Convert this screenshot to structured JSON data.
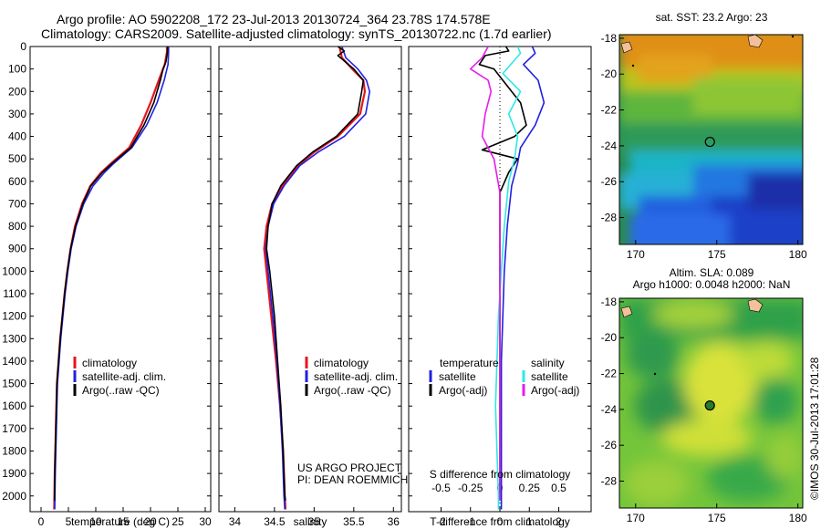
{
  "header": {
    "line1": "Argo profile: AO 5902208_172 23-Jul-2013 20130724_364 23.78S 174.578E",
    "line2": "Climatology: CARS2009. Satellite-adjusted climatology: synTS_20130722.nc (1.7d earlier)"
  },
  "colors": {
    "climatology": "#e8141c",
    "satellite": "#1f22e0",
    "argo": "#000000",
    "sat_salinity": "#2de8e8",
    "argo_salinity_adj": "#e81ce8"
  },
  "chart_data": [
    {
      "type": "line",
      "id": "temperature",
      "xlabel": "temperature (deg C)",
      "xticks": [
        0,
        5,
        10,
        15,
        20,
        25,
        30
      ],
      "xlim": [
        -2,
        31
      ],
      "ylim": [
        0,
        2070
      ],
      "yticks": [
        0,
        100,
        200,
        300,
        400,
        500,
        600,
        700,
        800,
        900,
        1000,
        1100,
        1200,
        1300,
        1400,
        1500,
        1600,
        1700,
        1800,
        1900,
        2000
      ],
      "legend": [
        "climatology",
        "satellite-adj. clim.",
        "Argo(..raw -QC)"
      ],
      "series": [
        {
          "name": "climatology",
          "color": "#e8141c",
          "points": [
            [
              23.0,
              0
            ],
            [
              23.0,
              25
            ],
            [
              22.6,
              80
            ],
            [
              21.5,
              150
            ],
            [
              20.0,
              250
            ],
            [
              18.3,
              350
            ],
            [
              16.1,
              450
            ],
            [
              12.8,
              520
            ],
            [
              11.0,
              560
            ],
            [
              9.0,
              620
            ],
            [
              7.5,
              700
            ],
            [
              6.2,
              800
            ],
            [
              5.4,
              900
            ],
            [
              4.8,
              1000
            ],
            [
              4.3,
              1100
            ],
            [
              3.9,
              1200
            ],
            [
              3.5,
              1300
            ],
            [
              3.2,
              1400
            ],
            [
              2.9,
              1500
            ],
            [
              2.7,
              1700
            ],
            [
              2.5,
              1900
            ],
            [
              2.4,
              2060
            ]
          ]
        },
        {
          "name": "satellite-adj. clim.",
          "color": "#1f22e0",
          "points": [
            [
              23.3,
              0
            ],
            [
              23.3,
              25
            ],
            [
              23.2,
              80
            ],
            [
              22.5,
              150
            ],
            [
              21.2,
              250
            ],
            [
              19.3,
              350
            ],
            [
              16.6,
              450
            ],
            [
              13.3,
              520
            ],
            [
              11.6,
              560
            ],
            [
              9.5,
              620
            ],
            [
              7.8,
              700
            ],
            [
              6.4,
              800
            ],
            [
              5.5,
              900
            ],
            [
              4.9,
              1000
            ],
            [
              4.4,
              1100
            ],
            [
              4.0,
              1200
            ],
            [
              3.6,
              1300
            ],
            [
              3.3,
              1400
            ],
            [
              3.0,
              1500
            ],
            [
              2.8,
              1700
            ],
            [
              2.6,
              1900
            ],
            [
              2.5,
              2060
            ]
          ]
        },
        {
          "name": "Argo(..raw -QC)",
          "color": "#000000",
          "points": [
            [
              23.1,
              0
            ],
            [
              23.1,
              20
            ],
            [
              23.0,
              40
            ],
            [
              22.8,
              70
            ],
            [
              22.3,
              100
            ],
            [
              21.8,
              150
            ],
            [
              20.6,
              250
            ],
            [
              18.8,
              350
            ],
            [
              16.4,
              450
            ],
            [
              13.0,
              520
            ],
            [
              11.2,
              560
            ],
            [
              9.1,
              620
            ],
            [
              7.6,
              700
            ],
            [
              6.3,
              800
            ],
            [
              5.4,
              900
            ],
            [
              4.8,
              1000
            ],
            [
              4.3,
              1100
            ],
            [
              3.9,
              1200
            ],
            [
              3.5,
              1300
            ],
            [
              3.2,
              1400
            ],
            [
              2.9,
              1500
            ],
            [
              2.7,
              1700
            ],
            [
              2.5,
              1900
            ],
            [
              2.45,
              2020
            ]
          ]
        }
      ]
    },
    {
      "type": "line",
      "id": "salinity",
      "xlabel": "salinity",
      "xticks": [
        34,
        34.5,
        35,
        35.5,
        36
      ],
      "xlim": [
        33.8,
        36.1
      ],
      "ylim": [
        0,
        2070
      ],
      "legend": [
        "climatology",
        "satellite-adj. clim.",
        "Argo(..raw -QC)"
      ],
      "annotation": [
        "US ARGO PROJECT",
        "PI: DEAN ROEMMICH"
      ],
      "series": [
        {
          "name": "climatology",
          "color": "#e8141c",
          "points": [
            [
              35.32,
              0
            ],
            [
              35.35,
              50
            ],
            [
              35.48,
              100
            ],
            [
              35.62,
              150
            ],
            [
              35.64,
              200
            ],
            [
              35.58,
              300
            ],
            [
              35.3,
              400
            ],
            [
              35.0,
              470
            ],
            [
              34.8,
              530
            ],
            [
              34.6,
              620
            ],
            [
              34.47,
              700
            ],
            [
              34.4,
              800
            ],
            [
              34.37,
              900
            ],
            [
              34.4,
              1000
            ],
            [
              34.46,
              1200
            ],
            [
              34.52,
              1400
            ],
            [
              34.57,
              1600
            ],
            [
              34.61,
              1800
            ],
            [
              34.63,
              2000
            ],
            [
              34.64,
              2060
            ]
          ]
        },
        {
          "name": "satellite-adj. clim.",
          "color": "#1f22e0",
          "points": [
            [
              35.35,
              0
            ],
            [
              35.4,
              50
            ],
            [
              35.55,
              100
            ],
            [
              35.66,
              150
            ],
            [
              35.7,
              200
            ],
            [
              35.65,
              300
            ],
            [
              35.38,
              400
            ],
            [
              35.05,
              470
            ],
            [
              34.82,
              530
            ],
            [
              34.62,
              620
            ],
            [
              34.49,
              700
            ],
            [
              34.42,
              800
            ],
            [
              34.39,
              900
            ],
            [
              34.42,
              1000
            ],
            [
              34.48,
              1200
            ],
            [
              34.53,
              1400
            ],
            [
              34.57,
              1600
            ],
            [
              34.6,
              1800
            ],
            [
              34.62,
              2000
            ],
            [
              34.63,
              2060
            ]
          ]
        },
        {
          "name": "Argo(..raw -QC)",
          "color": "#000000",
          "points": [
            [
              35.3,
              0
            ],
            [
              35.38,
              20
            ],
            [
              35.3,
              40
            ],
            [
              35.4,
              70
            ],
            [
              35.5,
              100
            ],
            [
              35.62,
              150
            ],
            [
              35.6,
              200
            ],
            [
              35.55,
              300
            ],
            [
              35.28,
              400
            ],
            [
              34.98,
              470
            ],
            [
              34.78,
              530
            ],
            [
              34.58,
              620
            ],
            [
              34.47,
              700
            ],
            [
              34.42,
              800
            ],
            [
              34.4,
              900
            ],
            [
              34.44,
              1000
            ],
            [
              34.5,
              1200
            ],
            [
              34.54,
              1400
            ],
            [
              34.58,
              1600
            ],
            [
              34.61,
              1800
            ],
            [
              34.63,
              2000
            ],
            [
              34.64,
              2020
            ]
          ]
        }
      ]
    },
    {
      "type": "line",
      "id": "difference",
      "xlabel": "T difference from climatology",
      "xlabel_top": "S difference from climatology",
      "xticks": [
        -2,
        -1,
        0,
        1,
        2
      ],
      "xticks_s": [
        -0.5,
        -0.25,
        0,
        0.25,
        0.5
      ],
      "xlim": [
        -3.1,
        3.1
      ],
      "ylim": [
        0,
        2070
      ],
      "legend_title_t": "temperature",
      "legend_title_s": "salinity",
      "legend": [
        "satellite",
        "Argo(-adj)",
        "satellite",
        "Argo(-adj)"
      ],
      "series": [
        {
          "name": "T satellite",
          "color": "#1f22e0",
          "points": [
            [
              1.1,
              0
            ],
            [
              1.2,
              30
            ],
            [
              0.8,
              80
            ],
            [
              1.3,
              150
            ],
            [
              1.5,
              250
            ],
            [
              1.2,
              350
            ],
            [
              0.7,
              450
            ],
            [
              0.6,
              520
            ],
            [
              0.4,
              620
            ],
            [
              0.25,
              800
            ],
            [
              0.15,
              1000
            ],
            [
              0.1,
              1200
            ],
            [
              0.05,
              1400
            ],
            [
              0.05,
              1600
            ],
            [
              0.05,
              1800
            ],
            [
              0.05,
              2000
            ],
            [
              0.05,
              2060
            ]
          ]
        },
        {
          "name": "T Argo(-adj)",
          "color": "#000000",
          "points": [
            [
              0.2,
              0
            ],
            [
              0.3,
              20
            ],
            [
              -0.5,
              40
            ],
            [
              -0.7,
              80
            ],
            [
              -0.2,
              100
            ],
            [
              0.1,
              150
            ],
            [
              0.7,
              250
            ],
            [
              0.9,
              350
            ],
            [
              0.5,
              400
            ],
            [
              -0.6,
              460
            ],
            [
              0.6,
              500
            ],
            [
              0.3,
              560
            ],
            [
              0.0,
              650
            ],
            [
              0.0,
              800
            ],
            [
              0.0,
              1000
            ],
            [
              0.0,
              1200
            ],
            [
              0.0,
              1500
            ],
            [
              0.0,
              1800
            ],
            [
              0.0,
              2000
            ],
            [
              0.0,
              2020
            ]
          ]
        },
        {
          "name": "S satellite",
          "color": "#2de8e8",
          "points": [
            [
              0.6,
              0
            ],
            [
              0.7,
              30
            ],
            [
              0.1,
              120
            ],
            [
              0.7,
              200
            ],
            [
              0.3,
              300
            ],
            [
              0.6,
              400
            ],
            [
              0.5,
              500
            ],
            [
              0.3,
              600
            ],
            [
              0.15,
              800
            ],
            [
              0.05,
              1000
            ],
            [
              -0.05,
              1200
            ],
            [
              -0.1,
              1400
            ],
            [
              -0.15,
              1600
            ],
            [
              -0.1,
              1800
            ],
            [
              -0.05,
              2000
            ],
            [
              -0.05,
              2060
            ]
          ]
        },
        {
          "name": "S Argo(-adj)",
          "color": "#e81ce8",
          "points": [
            [
              -0.4,
              0
            ],
            [
              -0.6,
              50
            ],
            [
              -1.0,
              100
            ],
            [
              -0.4,
              150
            ],
            [
              -0.3,
              200
            ],
            [
              -0.5,
              300
            ],
            [
              -0.6,
              400
            ],
            [
              -0.2,
              500
            ],
            [
              0.0,
              650
            ],
            [
              0.0,
              800
            ],
            [
              0.0,
              1000
            ],
            [
              0.0,
              1500
            ],
            [
              0.0,
              2000
            ],
            [
              0.0,
              2020
            ]
          ]
        }
      ]
    },
    {
      "type": "heatmap",
      "id": "sst_map",
      "title": "sat. SST: 23.2 Argo: 23",
      "xticks": [
        170,
        175,
        180
      ],
      "yticks": [
        -18,
        -20,
        -22,
        -24,
        -26,
        -28
      ],
      "xlim": [
        169,
        180.3
      ],
      "ylim": [
        -29.5,
        -17.8
      ],
      "marker": {
        "lon": 174.578,
        "lat": -23.78
      }
    },
    {
      "type": "heatmap",
      "id": "sla_map",
      "title_line1": "Altim. SLA: 0.089",
      "title_line2": "Argo h1000: 0.0048 h2000: NaN",
      "xticks": [
        170,
        175,
        180
      ],
      "yticks": [
        -18,
        -20,
        -22,
        -24,
        -26,
        -28
      ],
      "xlim": [
        169,
        180.3
      ],
      "ylim": [
        -29.5,
        -17.8
      ],
      "marker": {
        "lon": 174.578,
        "lat": -23.78
      }
    }
  ],
  "stamp": "©IMOS 30-Jul-2013 17:01:28"
}
